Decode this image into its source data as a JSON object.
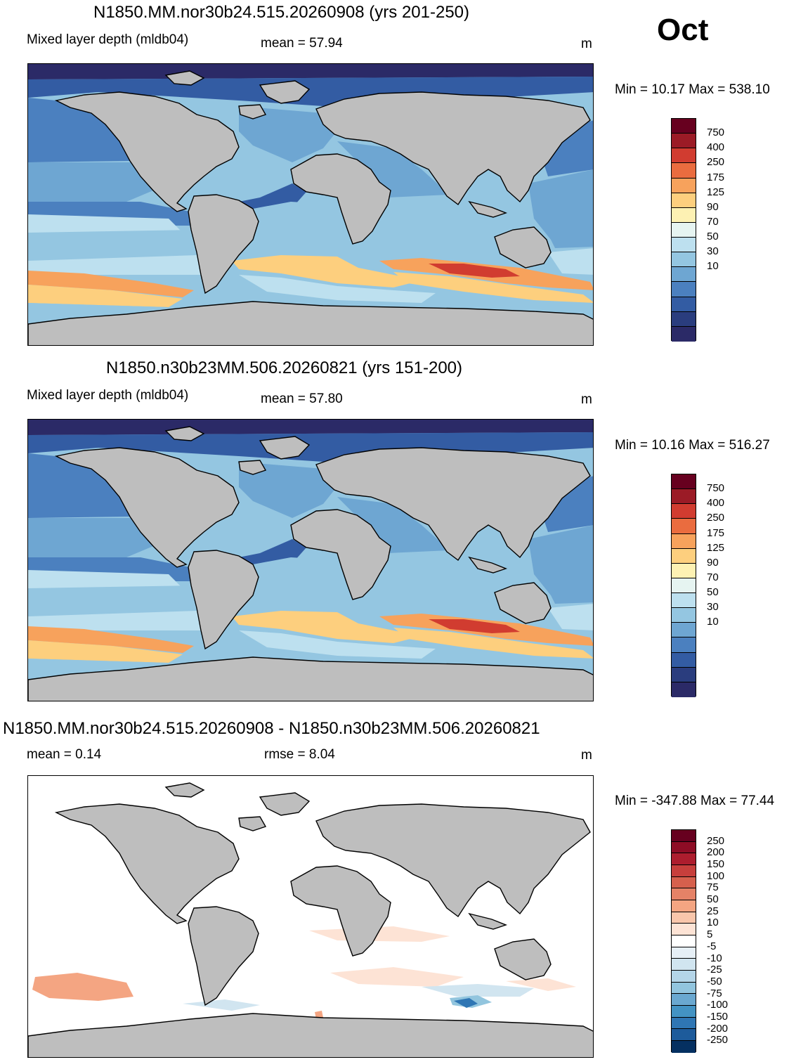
{
  "month": "Oct",
  "panels": [
    {
      "title": "N1850.MM.nor30b24.515.20260908 (yrs 201-250)",
      "variable": "Mixed layer depth (mldb04)",
      "mean_label": "mean =  57.94",
      "units": "m",
      "minmax": "Min =  10.17 Max = 538.10",
      "colorbar": {
        "labels": [
          "750",
          "400",
          "250",
          "175",
          "125",
          "90",
          "70",
          "50",
          "30",
          "10"
        ],
        "colors": [
          "#67001f",
          "#9b1b26",
          "#d13c30",
          "#ea6c3f",
          "#f7a25c",
          "#fdcf7e",
          "#fdf1b3",
          "#e6f4f1",
          "#bde0ef",
          "#94c6e1",
          "#6ea6d2",
          "#4b80bf",
          "#335ca3",
          "#2a3d7e",
          "#2b2a67"
        ]
      }
    },
    {
      "title": "N1850.n30b23MM.506.20260821 (yrs 151-200)",
      "variable": "Mixed layer depth (mldb04)",
      "mean_label": "mean =  57.80",
      "units": "m",
      "minmax": "Min =  10.16 Max = 516.27",
      "colorbar": {
        "labels": [
          "750",
          "400",
          "250",
          "175",
          "125",
          "90",
          "70",
          "50",
          "30",
          "10"
        ],
        "colors": [
          "#67001f",
          "#9b1b26",
          "#d13c30",
          "#ea6c3f",
          "#f7a25c",
          "#fdcf7e",
          "#fdf1b3",
          "#e6f4f1",
          "#bde0ef",
          "#94c6e1",
          "#6ea6d2",
          "#4b80bf",
          "#335ca3",
          "#2a3d7e",
          "#2b2a67"
        ]
      }
    },
    {
      "title": "N1850.MM.nor30b24.515.20260908 - N1850.n30b23MM.506.20260821",
      "mean_label": "mean =   0.14",
      "rmse_label": "rmse =   8.04",
      "units": "m",
      "minmax": "Min = -347.88 Max =  77.44",
      "colorbar": {
        "labels": [
          "250",
          "200",
          "150",
          "100",
          "75",
          "50",
          "25",
          "10",
          "5",
          "-5",
          "-10",
          "-25",
          "-50",
          "-75",
          "-100",
          "-150",
          "-200",
          "-250"
        ],
        "colors": [
          "#67001f",
          "#8e0c25",
          "#ad1d2e",
          "#c73f3c",
          "#d6604d",
          "#e58267",
          "#f4a582",
          "#f9c6ab",
          "#fde3d5",
          "#ffffff",
          "#e6eff6",
          "#d1e5f0",
          "#b4d5e8",
          "#92c5de",
          "#6aa8d0",
          "#4393c3",
          "#2f76b4",
          "#1d5b9b",
          "#053061"
        ]
      }
    }
  ]
}
